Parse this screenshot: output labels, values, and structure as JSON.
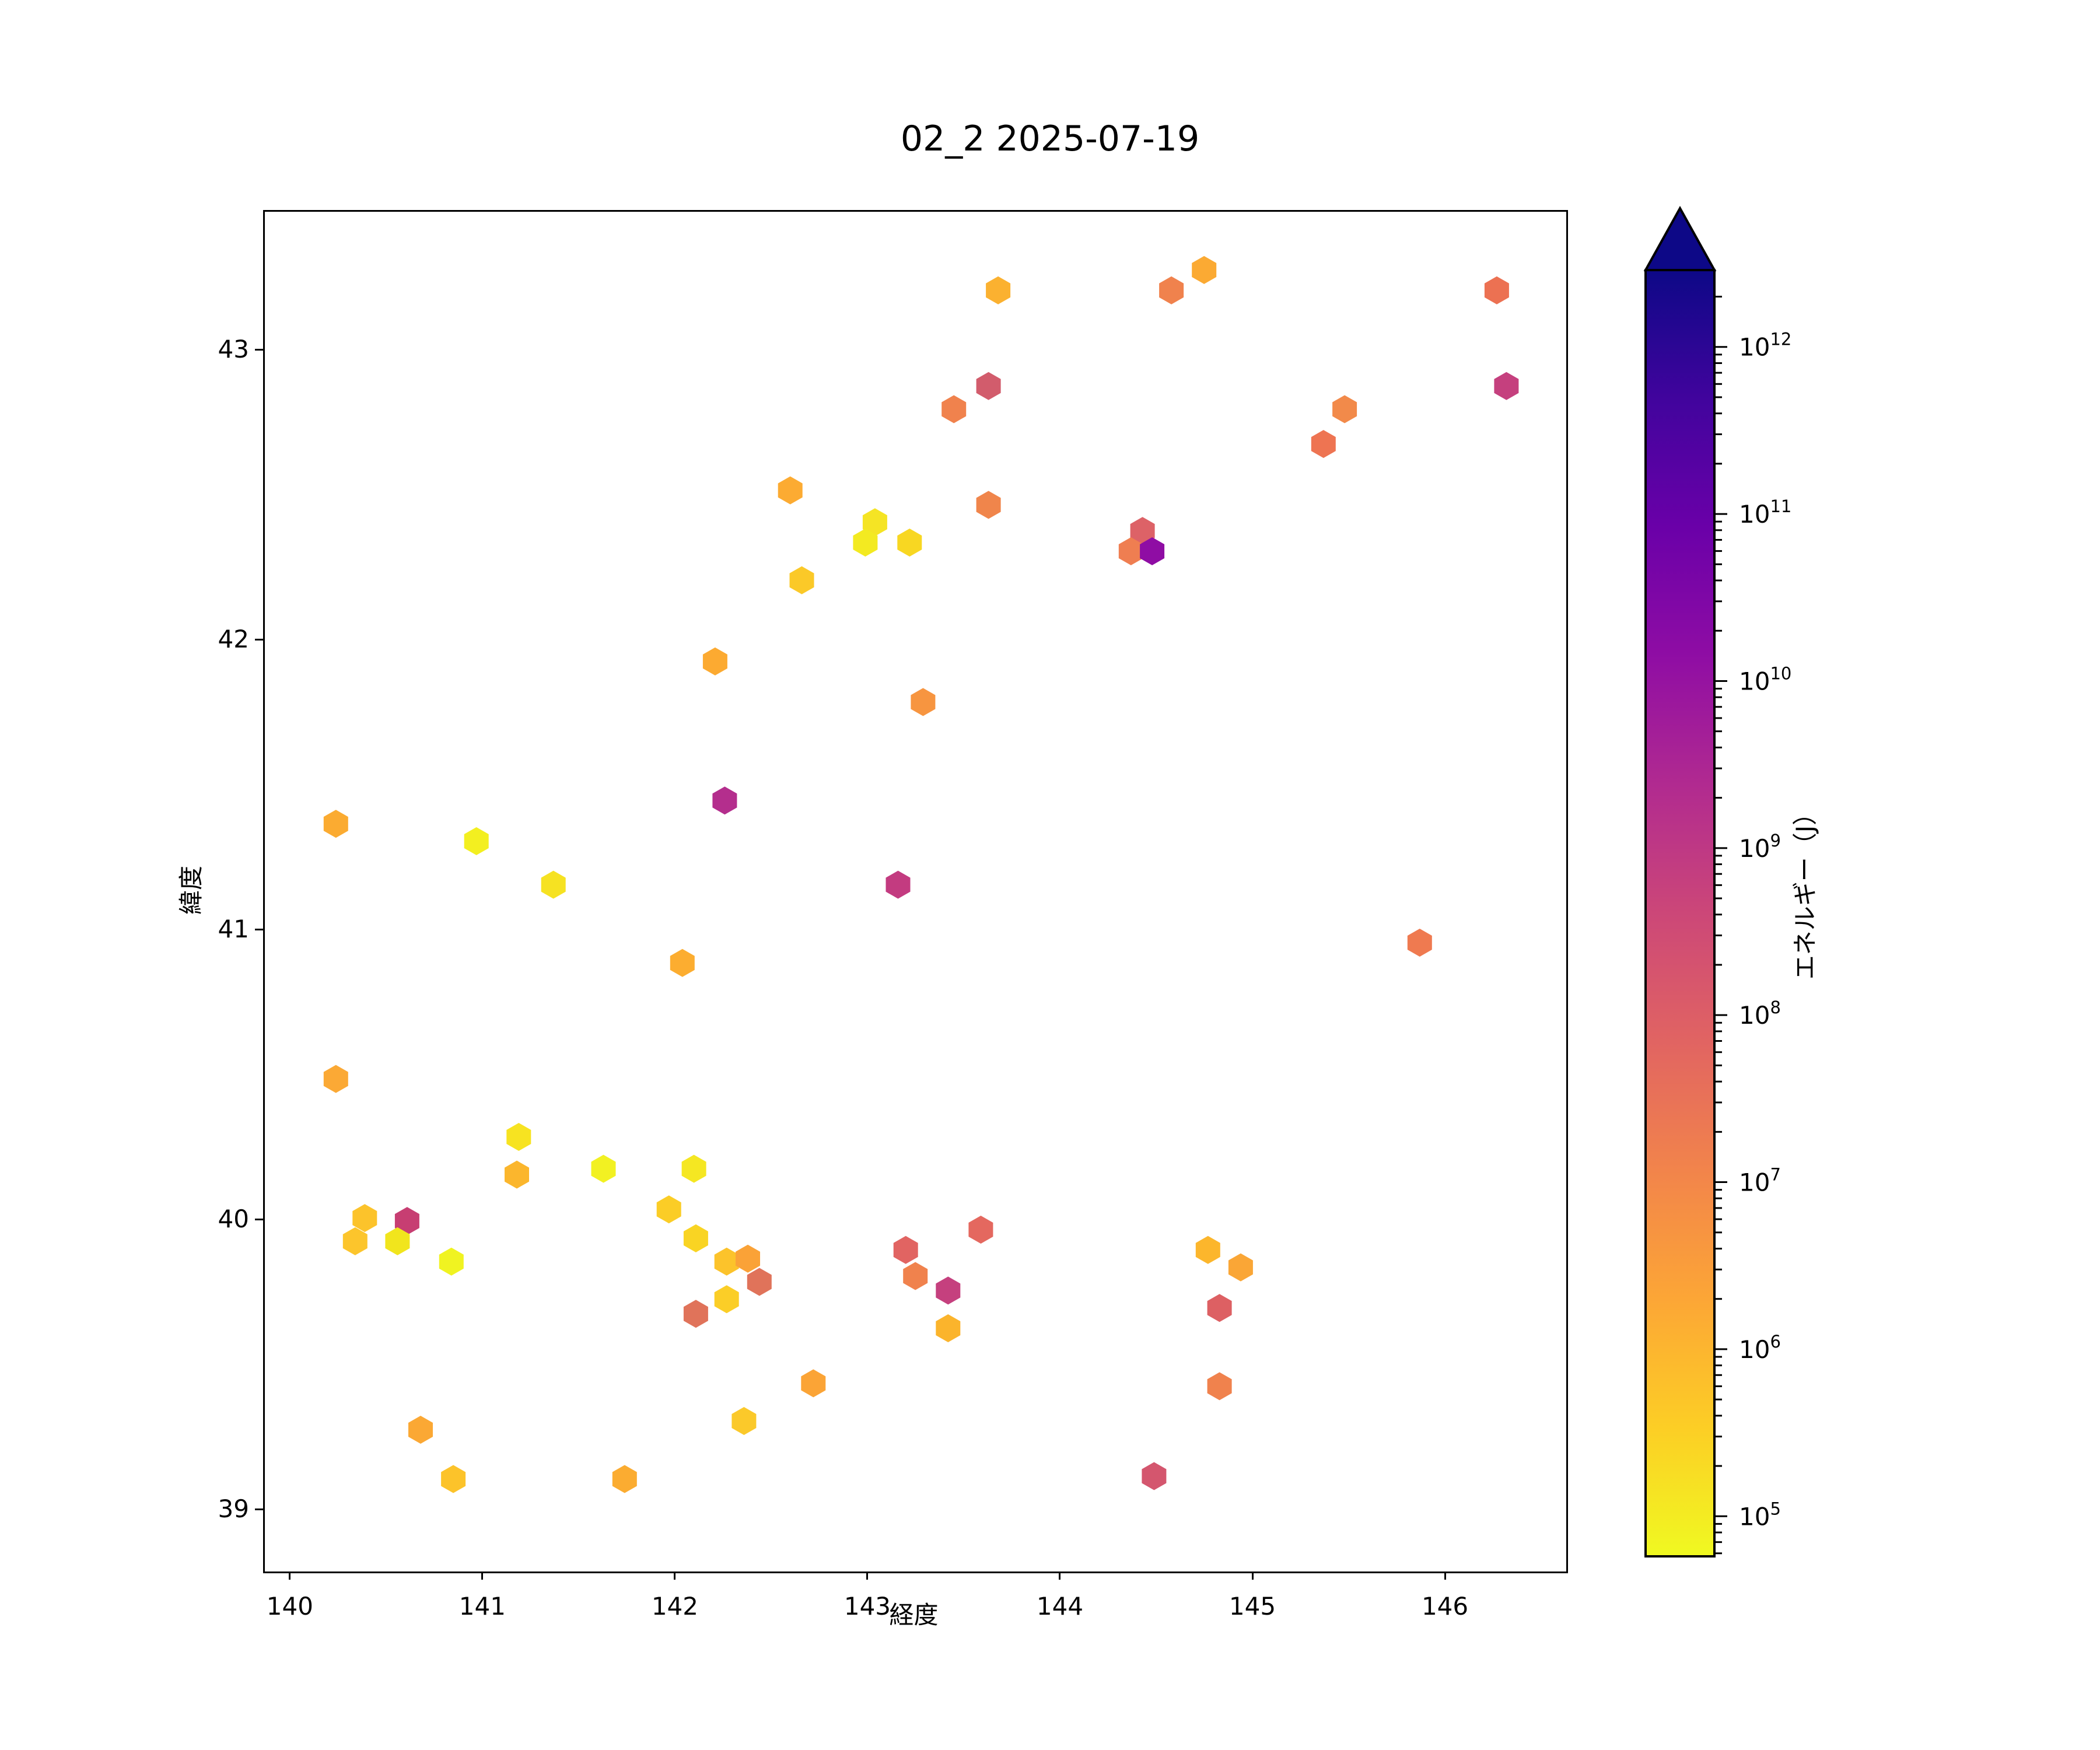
{
  "chart_data": {
    "type": "scatter",
    "title": "02_2 2025-07-19",
    "xlabel": "経度",
    "ylabel": "緯度",
    "marker": "hexagon",
    "grid": false,
    "xlim": [
      139.861,
      146.621
    ],
    "ylim": [
      38.791,
      43.481
    ],
    "x_ticks": [
      140,
      141,
      142,
      143,
      144,
      145,
      146
    ],
    "y_ticks": [
      39,
      40,
      41,
      42,
      43
    ],
    "colorbar": {
      "label": "エネルギー（J）",
      "scale": "log",
      "tick_exponents": [
        5,
        6,
        7,
        8,
        9,
        10,
        11,
        12
      ],
      "range_log10": [
        4.76,
        12.46
      ],
      "extend": "max",
      "colormap": "plasma_r",
      "colormap_stops_top_to_bottom": [
        "#0d0887",
        "#41049d",
        "#6a00a8",
        "#8f0da4",
        "#b12a90",
        "#cc4778",
        "#e16462",
        "#f2844b",
        "#fca636",
        "#fcce25",
        "#f0f921"
      ],
      "legend_position": "right"
    },
    "points": [
      [
        143.67,
        43.21,
        "#fbb130"
      ],
      [
        144.57,
        43.21,
        "#f0824d"
      ],
      [
        144.74,
        43.28,
        "#fbaa33"
      ],
      [
        146.26,
        43.21,
        "#ec7152"
      ],
      [
        143.62,
        42.88,
        "#d25c6c"
      ],
      [
        143.44,
        42.8,
        "#f0824d"
      ],
      [
        145.47,
        42.8,
        "#f28a4a"
      ],
      [
        145.36,
        42.68,
        "#ee7452"
      ],
      [
        146.31,
        42.88,
        "#c5407e"
      ],
      [
        143.62,
        42.47,
        "#f0854b"
      ],
      [
        144.42,
        42.38,
        "#dd6267"
      ],
      [
        144.36,
        42.31,
        "#ef7e51"
      ],
      [
        144.47,
        42.31,
        "#8f0da4"
      ],
      [
        142.59,
        42.52,
        "#fcab32"
      ],
      [
        143.03,
        42.41,
        "#f5e424"
      ],
      [
        142.98,
        42.34,
        "#f3ea21"
      ],
      [
        143.21,
        42.34,
        "#f8d722"
      ],
      [
        142.65,
        42.21,
        "#fbc928"
      ],
      [
        142.2,
        41.93,
        "#fcaa31"
      ],
      [
        143.28,
        41.79,
        "#f79540"
      ],
      [
        142.25,
        41.45,
        "#b42e8d"
      ],
      [
        140.23,
        41.37,
        "#fbab31"
      ],
      [
        140.96,
        41.31,
        "#f3ef20"
      ],
      [
        141.36,
        41.16,
        "#f6e222"
      ],
      [
        143.15,
        41.16,
        "#c33b80"
      ],
      [
        145.86,
        40.96,
        "#ef7a50"
      ],
      [
        142.03,
        40.89,
        "#fcad30"
      ],
      [
        140.23,
        40.49,
        "#fba935"
      ],
      [
        141.18,
        40.29,
        "#f7e321"
      ],
      [
        141.17,
        40.16,
        "#fbb62d"
      ],
      [
        141.62,
        40.18,
        "#f2f122"
      ],
      [
        142.09,
        40.18,
        "#f5e722"
      ],
      [
        141.96,
        40.04,
        "#fbcd26"
      ],
      [
        142.1,
        39.94,
        "#f9d423"
      ],
      [
        140.38,
        40.01,
        "#fcc32b"
      ],
      [
        140.33,
        39.93,
        "#fcc52c"
      ],
      [
        140.6,
        40.0,
        "#c73e72"
      ],
      [
        140.55,
        39.93,
        "#f1e51d"
      ],
      [
        140.83,
        39.86,
        "#f0f321"
      ],
      [
        142.26,
        39.86,
        "#fcc32b"
      ],
      [
        142.37,
        39.87,
        "#faa237"
      ],
      [
        142.43,
        39.79,
        "#e0735a"
      ],
      [
        142.26,
        39.73,
        "#fbce27"
      ],
      [
        142.1,
        39.68,
        "#e0735a"
      ],
      [
        143.19,
        39.9,
        "#e16462"
      ],
      [
        143.24,
        39.81,
        "#f0824d"
      ],
      [
        143.58,
        39.97,
        "#e4685f"
      ],
      [
        143.41,
        39.76,
        "#c5407e"
      ],
      [
        143.41,
        39.63,
        "#fbb42c"
      ],
      [
        144.76,
        39.9,
        "#fcb62c"
      ],
      [
        144.93,
        39.84,
        "#faa636"
      ],
      [
        144.82,
        39.7,
        "#dd6063"
      ],
      [
        144.82,
        39.43,
        "#f0824d"
      ],
      [
        144.48,
        39.12,
        "#d4566e"
      ],
      [
        142.71,
        39.44,
        "#fba436"
      ],
      [
        142.35,
        39.31,
        "#fbc92a"
      ],
      [
        140.67,
        39.28,
        "#fba834"
      ],
      [
        140.84,
        39.11,
        "#fcc32a"
      ],
      [
        141.73,
        39.11,
        "#fbac31"
      ]
    ]
  }
}
